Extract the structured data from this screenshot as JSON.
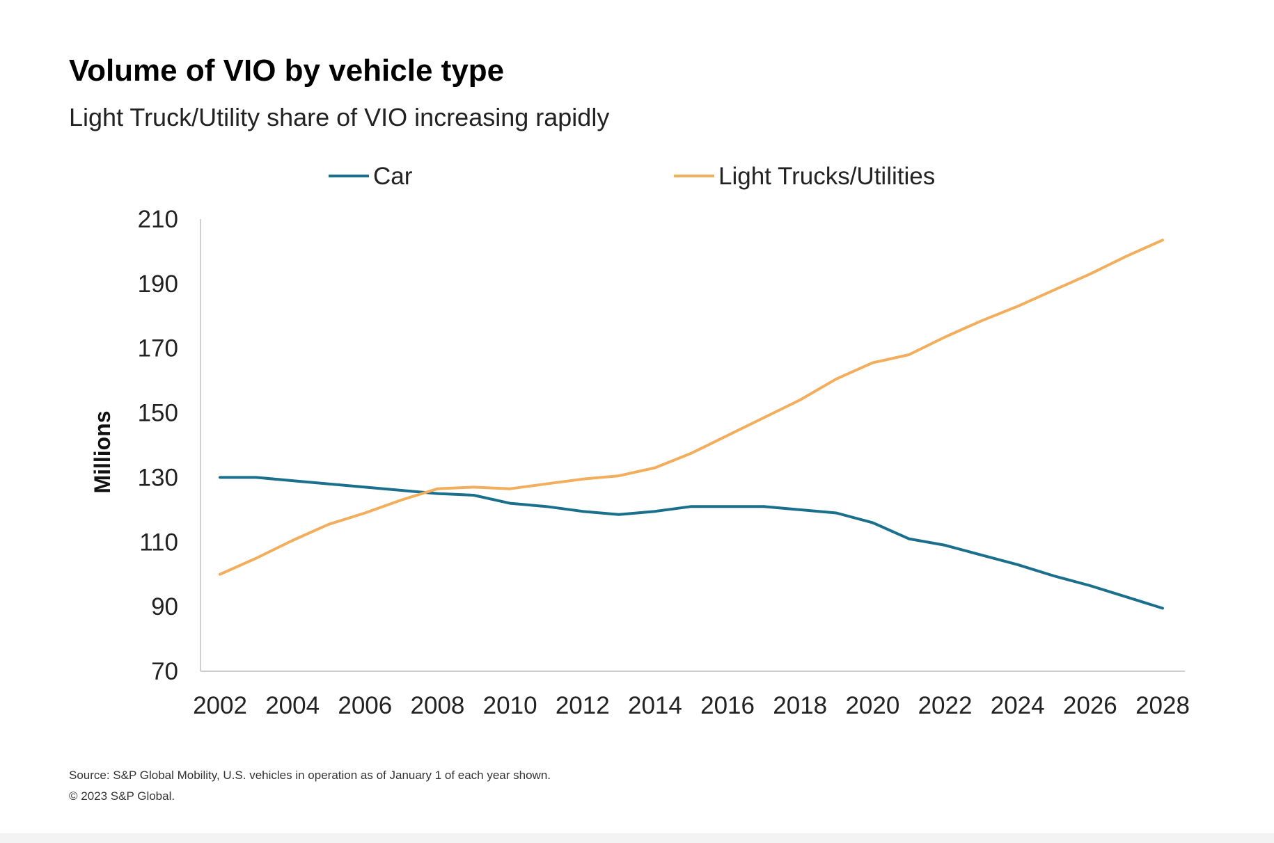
{
  "chart_data": {
    "type": "line",
    "title": "Volume of VIO by vehicle type",
    "subtitle": "Light Truck/Utility share of VIO increasing rapidly",
    "ylabel": "Millions",
    "xlabel": "",
    "ylim": [
      70,
      210
    ],
    "yticks": [
      70,
      90,
      110,
      130,
      150,
      170,
      190,
      210
    ],
    "xlim": [
      2002,
      2028
    ],
    "xticks": [
      2002,
      2004,
      2006,
      2008,
      2010,
      2012,
      2014,
      2016,
      2018,
      2020,
      2022,
      2024,
      2026,
      2028
    ],
    "grid": false,
    "legend_position": "top",
    "x": [
      2002,
      2003,
      2004,
      2005,
      2006,
      2007,
      2008,
      2009,
      2010,
      2011,
      2012,
      2013,
      2014,
      2015,
      2016,
      2017,
      2018,
      2019,
      2020,
      2021,
      2022,
      2023,
      2024,
      2025,
      2026,
      2027,
      2028
    ],
    "series": [
      {
        "name": "Car",
        "color": "#1a6f8c",
        "values": [
          130,
          130,
          129,
          128,
          127,
          126,
          125,
          124.5,
          122,
          121,
          119.5,
          118.5,
          119.5,
          121,
          121,
          121,
          120,
          119,
          116,
          111,
          109,
          106,
          103,
          99.5,
          96.5,
          93,
          89.5
        ]
      },
      {
        "name": "Light Trucks/Utilities",
        "color": "#f2ae5c",
        "values": [
          100,
          105,
          110.5,
          115.5,
          119,
          123,
          126.5,
          127,
          126.5,
          128,
          129.5,
          130.5,
          133,
          137.5,
          143,
          148.5,
          154,
          160.5,
          165.5,
          168,
          173.5,
          178.5,
          183,
          188,
          193,
          198.5,
          203.5
        ]
      }
    ],
    "source": "Source: S&P Global Mobility, U.S. vehicles in operation as of January 1 of each year shown.",
    "copyright": "© 2023 S&P Global."
  }
}
